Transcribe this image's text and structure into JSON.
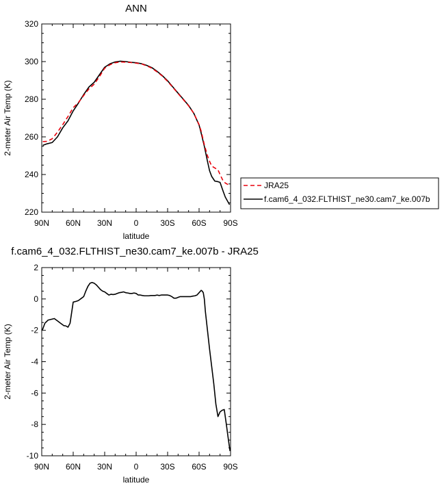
{
  "chart_data": [
    {
      "type": "line",
      "title": "ANN",
      "xlabel": "latitude",
      "ylabel": "2-meter Air Temp (K)",
      "xlim": [
        90,
        -90
      ],
      "ylim": [
        220,
        320
      ],
      "x_ticks": [
        90,
        60,
        30,
        0,
        -30,
        -60,
        -90
      ],
      "x_tick_labels": [
        "90N",
        "60N",
        "30N",
        "0",
        "30S",
        "60S",
        "90S"
      ],
      "y_ticks": [
        220,
        240,
        260,
        280,
        300,
        320
      ],
      "y_tick_labels": [
        "220",
        "240",
        "260",
        "280",
        "300",
        "320"
      ],
      "grid": false,
      "legend_position": "right",
      "series": [
        {
          "name": "JRA25",
          "color": "#e8000b",
          "dash": "dashed",
          "x": [
            89,
            85,
            80,
            75,
            70,
            65,
            60,
            55,
            50,
            45,
            40,
            35,
            30,
            25,
            20,
            15,
            10,
            5,
            0,
            -5,
            -10,
            -15,
            -20,
            -25,
            -30,
            -35,
            -40,
            -45,
            -50,
            -55,
            -60,
            -62,
            -65,
            -68,
            -70,
            -72,
            -75,
            -78,
            -80,
            -83,
            -85,
            -88,
            -89
          ],
          "y": [
            257.5,
            257.6,
            259,
            262.5,
            266.5,
            270.8,
            275.5,
            278.3,
            282,
            285.5,
            288,
            292,
            296.5,
            298.3,
            299.4,
            299.8,
            299.7,
            299.5,
            299.2,
            298.8,
            297.8,
            296.5,
            294.5,
            292.3,
            289.5,
            286.3,
            283,
            279.8,
            276.5,
            272.5,
            266.5,
            263,
            255.8,
            250,
            247,
            244.5,
            243.5,
            242.5,
            240,
            236.5,
            235.5,
            234.5,
            234
          ]
        },
        {
          "name": "f.cam6_4_032.FLTHIST_ne30.cam7_ke.007b",
          "color": "#000000",
          "dash": "solid",
          "x": [
            89,
            85,
            80,
            75,
            70,
            65,
            60,
            55,
            50,
            45,
            40,
            35,
            30,
            25,
            20,
            15,
            10,
            5,
            0,
            -5,
            -10,
            -15,
            -20,
            -25,
            -30,
            -35,
            -40,
            -45,
            -50,
            -55,
            -60,
            -62,
            -65,
            -68,
            -70,
            -72,
            -75,
            -78,
            -80,
            -83,
            -85,
            -88,
            -89
          ],
          "y": [
            255.5,
            256.3,
            257,
            260,
            264.8,
            268.5,
            273.8,
            278,
            282.5,
            286.5,
            289,
            293,
            297,
            298.8,
            299.8,
            300.2,
            300,
            299.6,
            299.4,
            298.9,
            298,
            296.8,
            294.8,
            292.5,
            289.8,
            286.5,
            283.2,
            280,
            276.7,
            272.5,
            266.3,
            262,
            255,
            247,
            242,
            239,
            236.5,
            236.2,
            235.8,
            231,
            228,
            225,
            224
          ]
        }
      ]
    },
    {
      "type": "line",
      "title": "f.cam6_4_032.FLTHIST_ne30.cam7_ke.007b - JRA25",
      "xlabel": "latitude",
      "ylabel": "2-meter Air Temp (K)",
      "xlim": [
        90,
        -90
      ],
      "ylim": [
        -10,
        2
      ],
      "x_ticks": [
        90,
        60,
        30,
        0,
        -30,
        -60,
        -90
      ],
      "x_tick_labels": [
        "90N",
        "60N",
        "30N",
        "0",
        "30S",
        "60S",
        "90S"
      ],
      "y_ticks": [
        -10,
        -8,
        -6,
        -4,
        -2,
        0,
        2
      ],
      "y_tick_labels": [
        "-10",
        "-8",
        "-6",
        "-4",
        "-2",
        "0",
        "2"
      ],
      "grid": false,
      "series": [
        {
          "color": "#000000",
          "dash": "solid",
          "x": [
            89.5,
            87,
            84,
            81,
            78,
            75,
            72,
            69,
            67,
            65,
            63,
            60,
            57,
            55,
            52,
            50,
            48,
            46,
            44,
            42,
            40,
            38,
            36,
            34,
            32,
            30,
            28,
            26,
            24,
            22,
            20,
            18,
            16,
            14,
            12,
            10,
            8,
            6,
            4,
            2,
            0,
            -2,
            -4,
            -6,
            -8,
            -10,
            -12,
            -14,
            -16,
            -18,
            -20,
            -22,
            -24,
            -26,
            -28,
            -30,
            -32,
            -34,
            -36,
            -38,
            -40,
            -42,
            -44,
            -46,
            -48,
            -50,
            -52,
            -54,
            -56,
            -58,
            -60,
            -62,
            -63,
            -64,
            -65,
            -66,
            -68,
            -70,
            -72,
            -74,
            -76,
            -78,
            -80,
            -82,
            -84,
            -86,
            -88,
            -89.5
          ],
          "y": [
            -2.0,
            -1.55,
            -1.35,
            -1.3,
            -1.25,
            -1.4,
            -1.55,
            -1.7,
            -1.72,
            -1.8,
            -1.55,
            -0.2,
            -0.15,
            -0.1,
            0.05,
            0.15,
            0.5,
            0.8,
            1.0,
            1.05,
            1.0,
            0.9,
            0.75,
            0.6,
            0.5,
            0.45,
            0.35,
            0.25,
            0.3,
            0.28,
            0.3,
            0.35,
            0.4,
            0.42,
            0.45,
            0.4,
            0.38,
            0.35,
            0.35,
            0.38,
            0.35,
            0.25,
            0.25,
            0.22,
            0.2,
            0.2,
            0.2,
            0.22,
            0.22,
            0.22,
            0.25,
            0.22,
            0.25,
            0.25,
            0.25,
            0.25,
            0.22,
            0.15,
            0.05,
            0.05,
            0.1,
            0.15,
            0.15,
            0.15,
            0.15,
            0.15,
            0.15,
            0.18,
            0.2,
            0.25,
            0.4,
            0.55,
            0.5,
            0.4,
            0.0,
            -0.8,
            -2.0,
            -3.2,
            -4.3,
            -5.4,
            -6.7,
            -7.5,
            -7.2,
            -7.1,
            -7.05,
            -8.0,
            -9.0,
            -9.7
          ]
        }
      ]
    }
  ]
}
